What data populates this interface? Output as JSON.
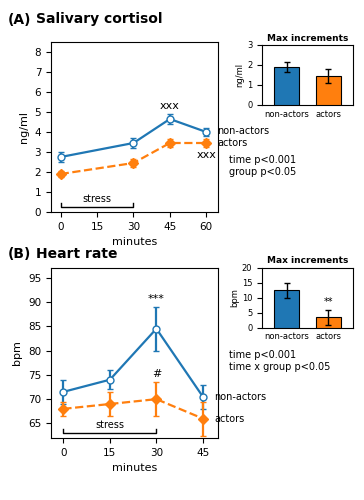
{
  "chart_data": [
    {
      "type": "line",
      "title": "Salivary cortisol",
      "xlabel": "minutes",
      "ylabel": "ng/ml",
      "x": [
        0,
        30,
        45,
        60
      ],
      "series": [
        {
          "name": "non-actors",
          "values": [
            2.75,
            3.45,
            4.65,
            4.0
          ],
          "errors": [
            0.25,
            0.25,
            0.25,
            0.2
          ],
          "marker": "open circle",
          "line_style": "solid"
        },
        {
          "name": "actors",
          "values": [
            1.9,
            2.45,
            3.45,
            3.45
          ],
          "errors": [
            0.15,
            0.2,
            0.2,
            0.2
          ],
          "marker": "diamond",
          "line_style": "dashed"
        }
      ],
      "xlim": [
        -4,
        65
      ],
      "xticks": [
        0,
        15,
        30,
        45,
        60
      ],
      "ylim": [
        0,
        8.5
      ],
      "yticks": [
        0,
        1,
        2,
        3,
        4,
        5,
        6,
        7,
        8
      ],
      "annotations": [
        {
          "kind": "panel",
          "text": "(A)"
        },
        {
          "kind": "note",
          "text": "time p<0.001\ngroup p<0.05"
        },
        {
          "kind": "interval",
          "text": "stress",
          "x": [
            0,
            30
          ]
        },
        {
          "kind": "point",
          "text": "xxx",
          "series": "non-actors",
          "x": 45
        },
        {
          "kind": "point",
          "text": "xxx",
          "series": "actors",
          "x": 60
        }
      ]
    },
    {
      "type": "bar",
      "title": "Max increments",
      "ylabel": "ng/ml",
      "categories": [
        "non-actors",
        "actors"
      ],
      "values": [
        1.9,
        1.45
      ],
      "errors": [
        0.25,
        0.35
      ],
      "ylim": [
        0,
        3
      ],
      "yticks": [
        0,
        1,
        2,
        3
      ]
    },
    {
      "type": "line",
      "title": "Heart rate",
      "xlabel": "minutes",
      "ylabel": "bpm",
      "x": [
        0,
        15,
        30,
        45
      ],
      "series": [
        {
          "name": "non-actors",
          "values": [
            71.5,
            74.0,
            84.5,
            70.5
          ],
          "errors": [
            2.5,
            2.0,
            4.5,
            2.5
          ],
          "marker": "open circle",
          "line_style": "solid"
        },
        {
          "name": "actors",
          "values": [
            68.0,
            69.0,
            70.0,
            66.0
          ],
          "errors": [
            1.5,
            2.5,
            3.5,
            3.5
          ],
          "marker": "diamond",
          "line_style": "dashed"
        }
      ],
      "xlim": [
        -4,
        50
      ],
      "xticks": [
        0,
        15,
        30,
        45
      ],
      "ylim": [
        62,
        97
      ],
      "yticks": [
        65,
        70,
        75,
        80,
        85,
        90,
        95
      ],
      "annotations": [
        {
          "kind": "panel",
          "text": "(B)"
        },
        {
          "kind": "note",
          "text": "time p<0.001\ntime x group p<0.05"
        },
        {
          "kind": "interval",
          "text": "stress",
          "x": [
            0,
            30
          ]
        },
        {
          "kind": "point",
          "text": "***",
          "series": "non-actors",
          "x": 30
        },
        {
          "kind": "point",
          "text": "#",
          "series": "actors",
          "x": 30
        }
      ]
    },
    {
      "type": "bar",
      "title": "Max increments",
      "ylabel": "bpm",
      "categories": [
        "non-actors",
        "actors"
      ],
      "values": [
        12.5,
        3.5
      ],
      "errors": [
        2.5,
        2.5
      ],
      "ylim": [
        0,
        20
      ],
      "yticks": [
        0,
        5,
        10,
        15,
        20
      ],
      "annotations": [
        {
          "kind": "point",
          "text": "**",
          "category": "actors"
        }
      ]
    }
  ]
}
